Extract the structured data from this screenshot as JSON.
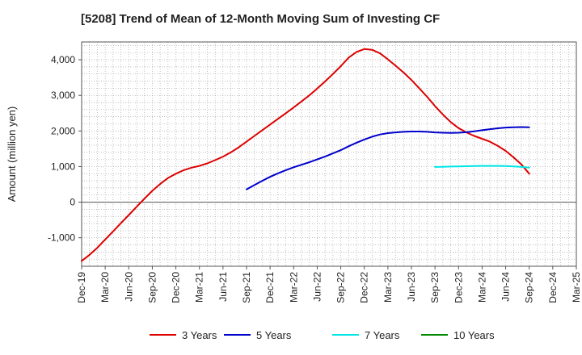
{
  "chart_data": {
    "type": "line",
    "title": "[5208]  Trend of Mean of 12-Month Moving Sum of Investing CF",
    "xlabel": "",
    "ylabel": "Amount (million yen)",
    "ylim": [
      -1800,
      4500
    ],
    "yticks": [
      -1000,
      0,
      1000,
      2000,
      3000,
      4000
    ],
    "ytick_labels": [
      "-1,000",
      "0",
      "1,000",
      "2,000",
      "3,000",
      "4,000"
    ],
    "xticks": [
      "Dec-19",
      "Mar-20",
      "Jun-20",
      "Sep-20",
      "Dec-20",
      "Mar-21",
      "Jun-21",
      "Sep-21",
      "Dec-21",
      "Mar-22",
      "Jun-22",
      "Sep-22",
      "Dec-22",
      "Mar-23",
      "Jun-23",
      "Sep-23",
      "Dec-23",
      "Mar-24",
      "Jun-24",
      "Sep-24",
      "Dec-24",
      "Mar-25"
    ],
    "grid": true,
    "legend_position": "bottom",
    "series": [
      {
        "name": "3 Years",
        "color": "#dd0000",
        "x": [
          "Dec-19",
          "Jan-20",
          "Feb-20",
          "Mar-20",
          "Apr-20",
          "May-20",
          "Jun-20",
          "Jul-20",
          "Aug-20",
          "Sep-20",
          "Oct-20",
          "Nov-20",
          "Dec-20",
          "Jan-21",
          "Feb-21",
          "Mar-21",
          "Apr-21",
          "May-21",
          "Jun-21",
          "Jul-21",
          "Aug-21",
          "Sep-21",
          "Oct-21",
          "Nov-21",
          "Dec-21",
          "Jan-22",
          "Feb-22",
          "Mar-22",
          "Apr-22",
          "May-22",
          "Jun-22",
          "Jul-22",
          "Aug-22",
          "Sep-22",
          "Oct-22",
          "Nov-22",
          "Dec-22",
          "Jan-23",
          "Feb-23",
          "Mar-23",
          "Apr-23",
          "May-23",
          "Jun-23",
          "Jul-23",
          "Aug-23",
          "Sep-23",
          "Oct-23",
          "Nov-23",
          "Dec-23",
          "Jan-24",
          "Feb-24",
          "Mar-24",
          "Apr-24",
          "May-24",
          "Jun-24",
          "Jul-24",
          "Aug-24",
          "Sep-24"
        ],
        "values": [
          -1650,
          -1480,
          -1280,
          -1050,
          -820,
          -590,
          -360,
          -130,
          100,
          320,
          510,
          680,
          800,
          900,
          970,
          1020,
          1090,
          1180,
          1280,
          1400,
          1540,
          1700,
          1860,
          2020,
          2180,
          2340,
          2500,
          2660,
          2830,
          3000,
          3190,
          3390,
          3600,
          3820,
          4060,
          4220,
          4300,
          4280,
          4180,
          4010,
          3830,
          3640,
          3430,
          3200,
          2960,
          2700,
          2460,
          2250,
          2080,
          1960,
          1860,
          1780,
          1700,
          1580,
          1440,
          1260,
          1060,
          800
        ]
      },
      {
        "name": "5 Years",
        "color": "#0000cc",
        "x": [
          "Sep-21",
          "Oct-21",
          "Nov-21",
          "Dec-21",
          "Jan-22",
          "Feb-22",
          "Mar-22",
          "Apr-22",
          "May-22",
          "Jun-22",
          "Jul-22",
          "Aug-22",
          "Sep-22",
          "Oct-22",
          "Nov-22",
          "Dec-22",
          "Jan-23",
          "Feb-23",
          "Mar-23",
          "Apr-23",
          "May-23",
          "Jun-23",
          "Jul-23",
          "Aug-23",
          "Sep-23",
          "Oct-23",
          "Nov-23",
          "Dec-23",
          "Jan-24",
          "Feb-24",
          "Mar-24",
          "Apr-24",
          "May-24",
          "Jun-24",
          "Jul-24",
          "Aug-24",
          "Sep-24"
        ],
        "values": [
          360,
          480,
          600,
          710,
          810,
          900,
          980,
          1050,
          1120,
          1200,
          1280,
          1370,
          1460,
          1570,
          1670,
          1760,
          1840,
          1900,
          1940,
          1960,
          1975,
          1985,
          1985,
          1975,
          1960,
          1950,
          1945,
          1950,
          1965,
          1990,
          2020,
          2050,
          2075,
          2095,
          2105,
          2110,
          2105
        ]
      },
      {
        "name": "7 Years",
        "color": "#00e5e5",
        "x": [
          "Sep-23",
          "Oct-23",
          "Nov-23",
          "Dec-23",
          "Jan-24",
          "Feb-24",
          "Mar-24",
          "Apr-24",
          "May-24",
          "Jun-24",
          "Jul-24",
          "Aug-24",
          "Sep-24"
        ],
        "values": [
          990,
          995,
          1000,
          1005,
          1010,
          1015,
          1020,
          1020,
          1020,
          1015,
          1005,
          990,
          970
        ]
      },
      {
        "name": "10 Years",
        "color": "#008800",
        "x": [],
        "values": []
      }
    ]
  }
}
